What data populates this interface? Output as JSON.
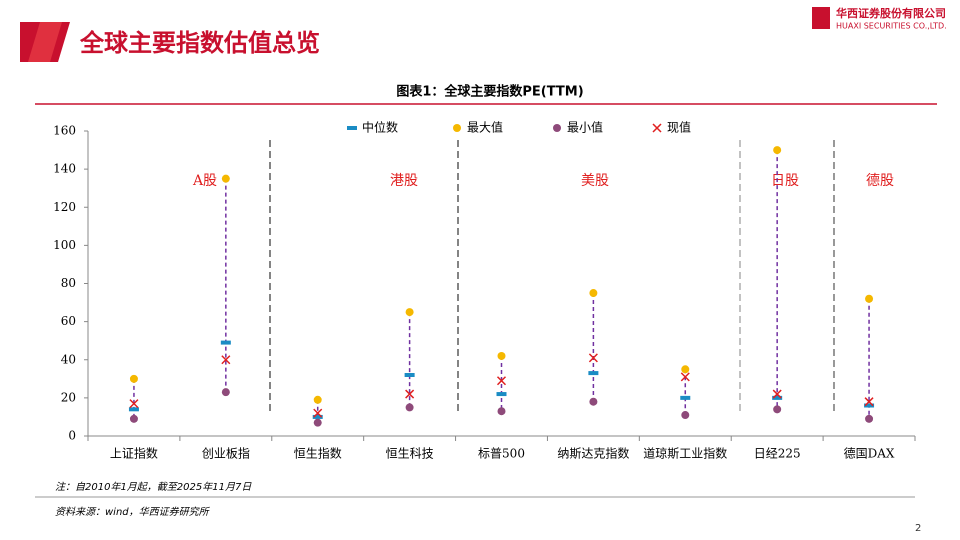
{
  "header": {
    "title": "全球主要指数估值总览",
    "company": "华西证券股份有限公司",
    "company_en": "HUAXI SECURITIES CO.,LTD."
  },
  "chart_data": {
    "type": "range-dot",
    "title": "图表1：全球主要指数PE(TTM)",
    "categories": [
      "上证指数",
      "创业板指",
      "恒生指数",
      "恒生科技",
      "标普500",
      "纳斯达克指数",
      "道琼斯工业指数",
      "日经225",
      "德国DAX"
    ],
    "groups": [
      "A股",
      "港股",
      "美股",
      "日股",
      "德股"
    ],
    "series": [
      {
        "name": "中位数",
        "color": "#1a8cc4",
        "marker": "dash",
        "values": [
          14,
          49,
          10,
          32,
          22,
          33,
          20,
          20,
          16
        ]
      },
      {
        "name": "最大值",
        "color": "#f5b800",
        "marker": "circle",
        "values": [
          30,
          135,
          19,
          65,
          42,
          75,
          35,
          150,
          72
        ]
      },
      {
        "name": "最小值",
        "color": "#8e4a7a",
        "marker": "circle",
        "values": [
          9,
          23,
          7,
          15,
          13,
          18,
          11,
          14,
          9
        ]
      },
      {
        "name": "现值",
        "color": "#e02020",
        "marker": "cross",
        "values": [
          17,
          40,
          12,
          22,
          29,
          41,
          31,
          22,
          18
        ]
      }
    ],
    "range_color": "#7030a0",
    "ylim": [
      0,
      160
    ],
    "yticks": [
      0,
      20,
      40,
      60,
      80,
      100,
      120,
      140,
      160
    ]
  },
  "footer": {
    "note": "注：自2010年1月起，截至2025年11月7日",
    "source": "资料来源：wind，华西证券研究所",
    "page": "2"
  }
}
